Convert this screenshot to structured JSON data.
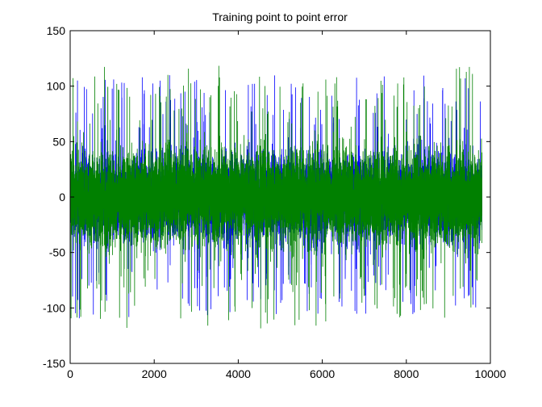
{
  "chart_data": {
    "type": "line",
    "title": "Training point to point error",
    "xlabel": "",
    "ylabel": "",
    "xlim": [
      0,
      10000
    ],
    "ylim": [
      -150,
      150
    ],
    "xticks": [
      0,
      2000,
      4000,
      6000,
      8000,
      10000
    ],
    "xtick_labels": [
      "0",
      "2000",
      "4000",
      "6000",
      "8000",
      "10000"
    ],
    "yticks": [
      -150,
      -100,
      -50,
      0,
      50,
      100,
      150
    ],
    "ytick_labels": [
      "-150",
      "-100",
      "-50",
      "0",
      "50",
      "100",
      "150"
    ],
    "grid": false,
    "legend": "none",
    "n_points": 9800,
    "series": [
      {
        "color": "#0000ff",
        "description": "noise-like error signal centered at 0, dense band roughly -30 to 30, spikes to about +-110",
        "x_range": [
          0,
          9800
        ],
        "typical_amplitude": 30,
        "peak_amplitude": 110
      },
      {
        "color": "#008000",
        "description": "noise-like error signal centered at 0, dense band roughly -35 to 35, spikes to about +-120",
        "x_range": [
          0,
          9800
        ],
        "typical_amplitude": 35,
        "peak_amplitude": 120
      }
    ]
  }
}
